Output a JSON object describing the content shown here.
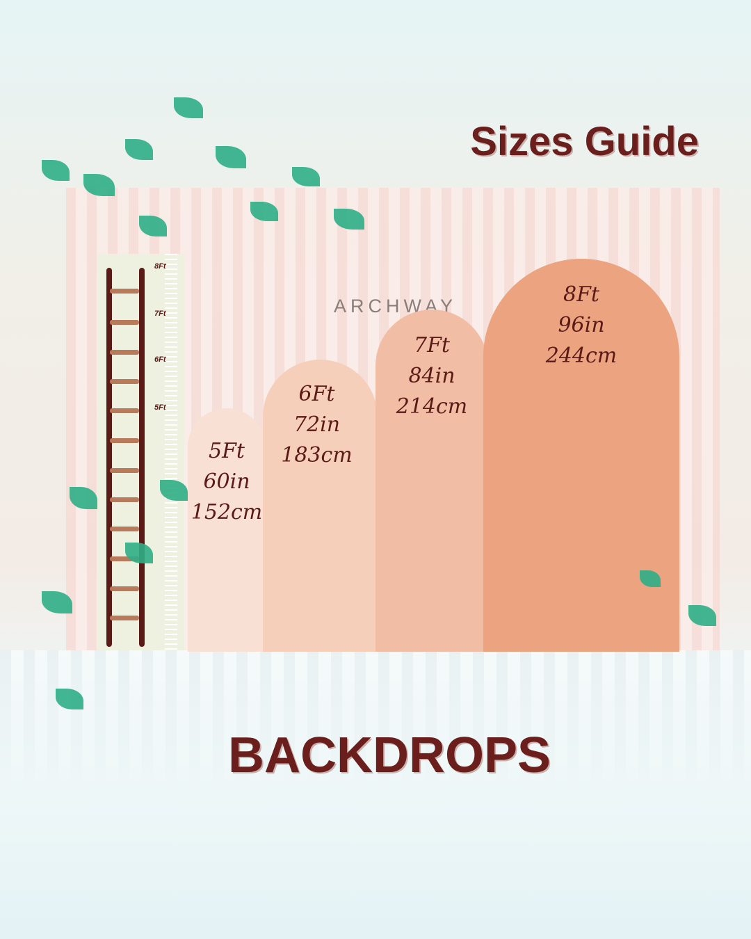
{
  "title": "Sizes Guide",
  "subtitle": "BACKDROPS",
  "brand": "ARCHWAY",
  "ruler_marks": [
    "8Ft",
    "7Ft",
    "6Ft",
    "5Ft"
  ],
  "arches": [
    {
      "ft": "5Ft",
      "in": "60in",
      "cm": "152cm",
      "color": "#f8e0d5"
    },
    {
      "ft": "6Ft",
      "in": "72in",
      "cm": "183cm",
      "color": "#f6cfbb"
    },
    {
      "ft": "7Ft",
      "in": "84in",
      "cm": "214cm",
      "color": "#f2bda5"
    },
    {
      "ft": "8Ft",
      "in": "96in",
      "cm": "244cm",
      "color": "#eba380"
    }
  ]
}
